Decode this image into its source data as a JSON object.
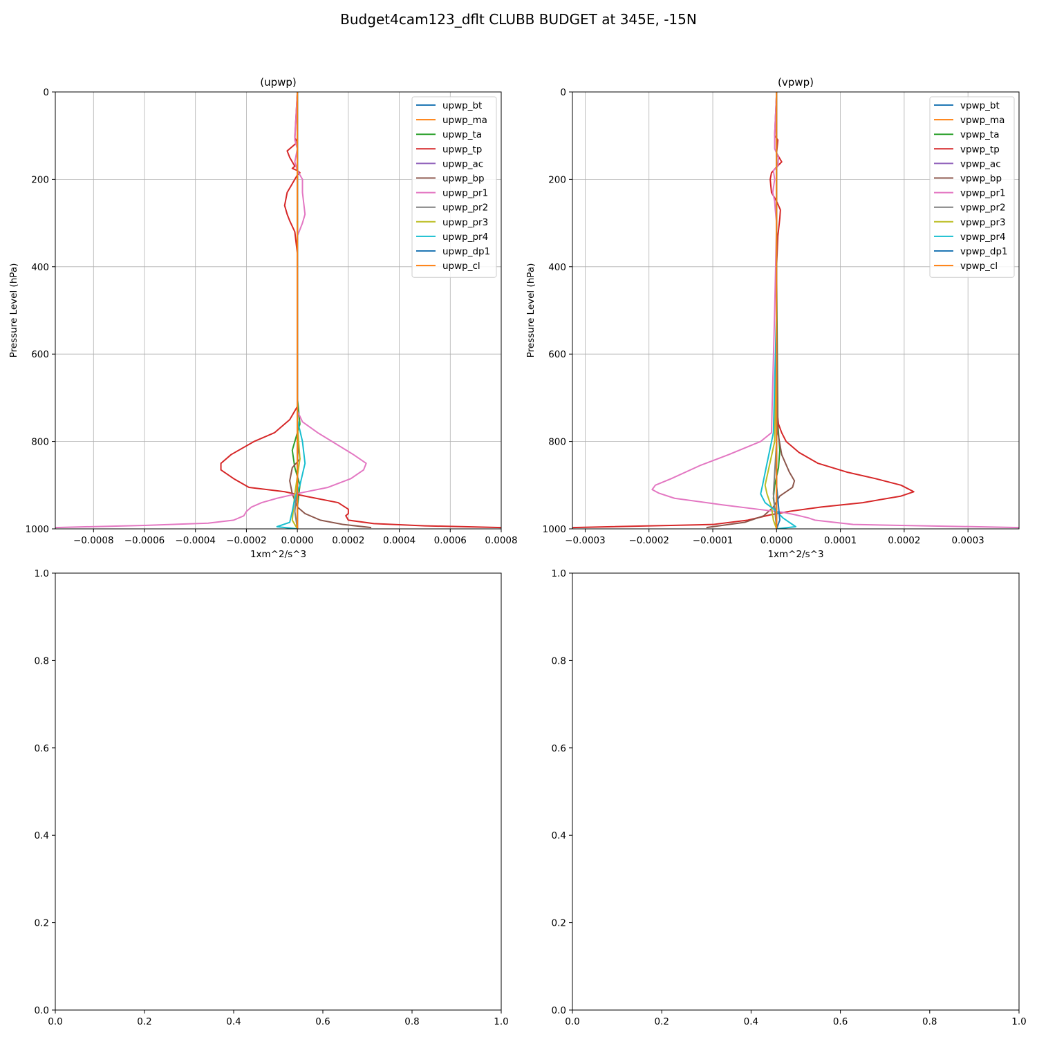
{
  "figure": {
    "title": "Budget4cam123_dflt CLUBB BUDGET at 345E, -15N"
  },
  "colors": [
    "#1f77b4",
    "#ff7f0e",
    "#2ca02c",
    "#d62728",
    "#9467bd",
    "#8c564b",
    "#e377c2",
    "#7f7f7f",
    "#bcbd22",
    "#17becf",
    "#1f77b4",
    "#ff7f0e"
  ],
  "chart_data": [
    {
      "type": "line",
      "title": "(upwp)",
      "xlabel": "1xm^2/s^3",
      "ylabel": "Pressure Level (hPa)",
      "xlim": [
        -0.00095,
        0.0008
      ],
      "ylim": [
        1000,
        0
      ],
      "y_inverted": true,
      "grid": true,
      "legend_position": "upper right",
      "xticks": [
        -0.0008,
        -0.0006,
        -0.0004,
        -0.0002,
        0.0,
        0.0002,
        0.0004,
        0.0006,
        0.0008
      ],
      "xtick_labels": [
        "−0.0008",
        "−0.0006",
        "−0.0004",
        "−0.0002",
        "0.0000",
        "0.0002",
        "0.0004",
        "0.0006",
        "0.0008"
      ],
      "yticks": [
        0,
        200,
        400,
        600,
        800,
        1000
      ],
      "ytick_labels": [
        "0",
        "200",
        "400",
        "600",
        "800",
        "1000"
      ],
      "series": [
        {
          "name": "upwp_bt",
          "x": [
            0,
            0,
            0,
            0,
            0,
            0,
            0,
            0,
            0
          ],
          "y": [
            0,
            200,
            400,
            600,
            700,
            800,
            900,
            980,
            1000
          ]
        },
        {
          "name": "upwp_ma",
          "x": [
            0,
            0,
            0,
            0,
            0,
            0,
            0
          ],
          "y": [
            0,
            200,
            400,
            600,
            800,
            950,
            1000
          ]
        },
        {
          "name": "upwp_ta",
          "x": [
            0,
            0,
            0,
            1e-05,
            -2e-05,
            -1e-05,
            1e-05,
            0,
            0
          ],
          "y": [
            0,
            400,
            700,
            760,
            820,
            860,
            900,
            950,
            1000
          ]
        },
        {
          "name": "upwp_tp",
          "x": [
            0,
            -1e-05,
            0,
            -1e-05,
            -2e-05,
            -4e-05,
            -3e-05,
            -2e-05,
            -1e-05,
            -2e-05,
            0,
            1e-05,
            0,
            -1e-05,
            -2e-05,
            -4e-05,
            -5e-05,
            -4e-05,
            -3e-05,
            -1e-05,
            0,
            0,
            -3e-05,
            -9e-05,
            -0.00017,
            -0.00026,
            -0.0003,
            -0.0003,
            -0.00025,
            -0.00019,
            -5e-05,
            3e-05,
            0.00016,
            0.0002,
            0.0002,
            0.00019,
            0.0002,
            0.0003,
            0.0005,
            0.0008
          ],
          "y": [
            0,
            105,
            115,
            120,
            125,
            135,
            150,
            160,
            170,
            175,
            180,
            185,
            190,
            200,
            210,
            230,
            260,
            280,
            295,
            320,
            370,
            720,
            750,
            780,
            800,
            830,
            850,
            865,
            885,
            905,
            915,
            925,
            940,
            955,
            965,
            970,
            980,
            988,
            993,
            997
          ]
        },
        {
          "name": "upwp_ac",
          "x": [
            0,
            0,
            0,
            0,
            0
          ],
          "y": [
            0,
            400,
            700,
            900,
            1000
          ]
        },
        {
          "name": "upwp_bp",
          "x": [
            0,
            0,
            0,
            1e-05,
            -2e-05,
            -3e-05,
            -2e-05,
            0,
            3e-05,
            9e-05,
            0.00018,
            0.00029
          ],
          "y": [
            0,
            600,
            800,
            840,
            860,
            890,
            920,
            950,
            965,
            980,
            990,
            997
          ]
        },
        {
          "name": "upwp_pr1",
          "x": [
            0,
            -1e-05,
            0,
            -1e-05,
            0,
            2e-05,
            2e-05,
            3e-05,
            2e-05,
            0,
            0,
            2e-05,
            8e-05,
            0.00022,
            0.00027,
            0.00026,
            0.00021,
            0.00012,
            1e-05,
            -8e-05,
            -0.00014,
            -0.00018,
            -0.0002,
            -0.00021,
            -0.00025,
            -0.00035,
            -0.0006,
            -0.00095
          ],
          "y": [
            0,
            110,
            130,
            160,
            180,
            200,
            230,
            280,
            300,
            330,
            730,
            755,
            780,
            830,
            850,
            865,
            885,
            905,
            918,
            930,
            940,
            950,
            960,
            970,
            980,
            987,
            992,
            997
          ]
        },
        {
          "name": "upwp_pr2",
          "x": [
            0,
            0,
            0,
            0,
            -1e-05,
            0
          ],
          "y": [
            0,
            500,
            800,
            900,
            960,
            1000
          ]
        },
        {
          "name": "upwp_pr3",
          "x": [
            0,
            0,
            0,
            1e-05,
            0,
            -1e-05,
            -2e-05,
            0
          ],
          "y": [
            0,
            500,
            760,
            840,
            880,
            920,
            980,
            1000
          ]
        },
        {
          "name": "upwp_pr4",
          "x": [
            0,
            0,
            0,
            2e-05,
            3e-05,
            1e-05,
            -1e-05,
            -2e-05,
            -3e-05,
            -8e-05,
            0
          ],
          "y": [
            0,
            300,
            750,
            800,
            850,
            900,
            930,
            960,
            985,
            995,
            1000
          ]
        },
        {
          "name": "upwp_dp1",
          "x": [
            0,
            0,
            0,
            0,
            0
          ],
          "y": [
            0,
            300,
            600,
            900,
            1000
          ]
        },
        {
          "name": "upwp_cl",
          "x": [
            0,
            0,
            0
          ],
          "y": [
            0,
            600,
            1000
          ]
        }
      ]
    },
    {
      "type": "line",
      "title": "(vpwp)",
      "xlabel": "1xm^2/s^3",
      "ylabel": "Pressure Level (hPa)",
      "xlim": [
        -0.00032,
        0.00038
      ],
      "ylim": [
        1000,
        0
      ],
      "y_inverted": true,
      "grid": true,
      "legend_position": "upper right",
      "xticks": [
        -0.0003,
        -0.0002,
        -0.0001,
        0.0,
        0.0001,
        0.0002,
        0.0003
      ],
      "xtick_labels": [
        "−0.0003",
        "−0.0002",
        "−0.0001",
        "0.0000",
        "0.0001",
        "0.0002",
        "0.0003"
      ],
      "yticks": [
        0,
        200,
        400,
        600,
        800,
        1000
      ],
      "ytick_labels": [
        "0",
        "200",
        "400",
        "600",
        "800",
        "1000"
      ],
      "series": [
        {
          "name": "vpwp_bt",
          "x": [
            0,
            0,
            0,
            0,
            0
          ],
          "y": [
            0,
            300,
            600,
            900,
            1000
          ]
        },
        {
          "name": "vpwp_ma",
          "x": [
            0,
            0,
            0,
            0,
            0
          ],
          "y": [
            0,
            300,
            600,
            900,
            1000
          ]
        },
        {
          "name": "vpwp_ta",
          "x": [
            0,
            0,
            2e-06,
            5e-06,
            3e-06,
            -3e-06,
            -5e-06,
            -2e-06,
            0
          ],
          "y": [
            0,
            400,
            760,
            820,
            860,
            900,
            930,
            960,
            1000
          ]
        },
        {
          "name": "vpwp_tp",
          "x": [
            0,
            -3e-06,
            2e-06,
            0,
            8e-06,
            -2e-06,
            -8e-06,
            -1e-05,
            -8e-06,
            0,
            6e-06,
            5e-06,
            2e-06,
            0,
            0,
            3e-06,
            8e-06,
            1.5e-05,
            3.5e-05,
            6.5e-05,
            0.00011,
            0.000155,
            0.000195,
            0.000215,
            0.000195,
            0.000135,
            7e-05,
            2e-05,
            -1e-05,
            -4.5e-05,
            -0.0001,
            -0.00032
          ],
          "y": [
            0,
            100,
            110,
            140,
            160,
            175,
            185,
            200,
            230,
            250,
            270,
            290,
            330,
            400,
            720,
            760,
            780,
            800,
            825,
            850,
            870,
            885,
            900,
            915,
            925,
            940,
            950,
            960,
            968,
            980,
            990,
            997
          ]
        },
        {
          "name": "vpwp_ac",
          "x": [
            0,
            0,
            0,
            0,
            0
          ],
          "y": [
            0,
            300,
            600,
            900,
            1000
          ]
        },
        {
          "name": "vpwp_bp",
          "x": [
            0,
            0,
            2e-06,
            8e-06,
            2e-05,
            2.8e-05,
            2.5e-05,
            5e-06,
            -5e-06,
            -2e-05,
            -5e-05,
            -0.00011
          ],
          "y": [
            0,
            500,
            780,
            830,
            870,
            890,
            905,
            925,
            950,
            970,
            985,
            997
          ]
        },
        {
          "name": "vpwp_pr1",
          "x": [
            0,
            -3e-06,
            -3e-06,
            3e-06,
            2e-06,
            -5e-06,
            -3e-06,
            -6e-06,
            -3e-06,
            -2e-06,
            0,
            -3e-06,
            -8e-06,
            -2.5e-05,
            -7.5e-05,
            -0.00012,
            -0.000165,
            -0.00019,
            -0.000195,
            -0.000185,
            -0.00016,
            -8.5e-05,
            -3e-05,
            1e-05,
            3e-05,
            5e-05,
            6e-05,
            0.00012,
            0.00038
          ],
          "y": [
            0,
            100,
            130,
            150,
            170,
            180,
            200,
            230,
            250,
            270,
            300,
            500,
            780,
            800,
            830,
            855,
            885,
            900,
            910,
            918,
            930,
            945,
            955,
            962,
            968,
            975,
            980,
            990,
            997
          ]
        },
        {
          "name": "vpwp_pr2",
          "x": [
            0,
            0,
            0,
            -5e-06,
            0
          ],
          "y": [
            0,
            500,
            800,
            920,
            1000
          ]
        },
        {
          "name": "vpwp_pr3",
          "x": [
            0,
            0,
            -3e-06,
            -1.2e-05,
            -1.8e-05,
            -1.5e-05,
            -8e-06,
            -5e-06,
            0
          ],
          "y": [
            0,
            500,
            800,
            860,
            900,
            920,
            950,
            980,
            1000
          ]
        },
        {
          "name": "vpwp_pr4",
          "x": [
            0,
            0,
            -5e-06,
            -1.5e-05,
            -2.2e-05,
            -2.5e-05,
            -1.8e-05,
            0,
            1e-05,
            2e-05,
            3e-05,
            0
          ],
          "y": [
            0,
            500,
            780,
            850,
            900,
            920,
            940,
            960,
            975,
            985,
            995,
            1000
          ]
        },
        {
          "name": "vpwp_dp1",
          "x": [
            0,
            0,
            0,
            0,
            5e-06,
            0
          ],
          "y": [
            0,
            300,
            600,
            900,
            980,
            1000
          ]
        },
        {
          "name": "vpwp_cl",
          "x": [
            0,
            0,
            0
          ],
          "y": [
            0,
            600,
            1000
          ]
        }
      ]
    },
    {
      "type": "line",
      "title": "",
      "xlim": [
        0,
        1
      ],
      "ylim": [
        0,
        1
      ],
      "grid": false,
      "xticks": [
        0.0,
        0.2,
        0.4,
        0.6,
        0.8,
        1.0
      ],
      "xtick_labels": [
        "0.0",
        "0.2",
        "0.4",
        "0.6",
        "0.8",
        "1.0"
      ],
      "yticks": [
        0.0,
        0.2,
        0.4,
        0.6,
        0.8,
        1.0
      ],
      "ytick_labels": [
        "0.0",
        "0.2",
        "0.4",
        "0.6",
        "0.8",
        "1.0"
      ],
      "series": []
    },
    {
      "type": "line",
      "title": "",
      "xlim": [
        0,
        1
      ],
      "ylim": [
        0,
        1
      ],
      "grid": false,
      "xticks": [
        0.0,
        0.2,
        0.4,
        0.6,
        0.8,
        1.0
      ],
      "xtick_labels": [
        "0.0",
        "0.2",
        "0.4",
        "0.6",
        "0.8",
        "1.0"
      ],
      "yticks": [
        0.0,
        0.2,
        0.4,
        0.6,
        0.8,
        1.0
      ],
      "ytick_labels": [
        "0.0",
        "0.2",
        "0.4",
        "0.6",
        "0.8",
        "1.0"
      ],
      "series": []
    }
  ]
}
